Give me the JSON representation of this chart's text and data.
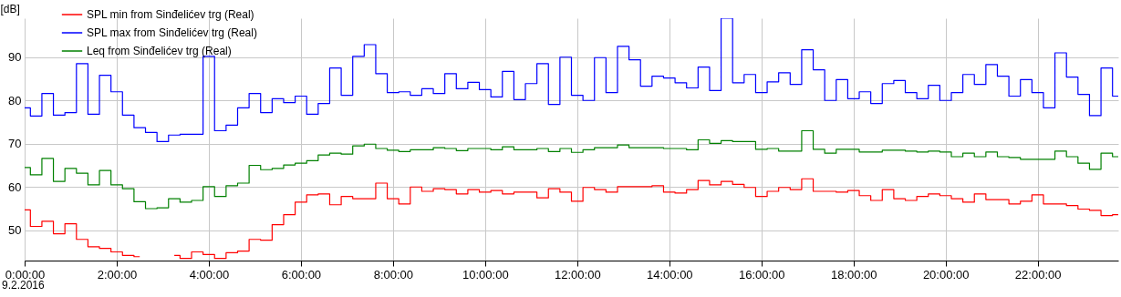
{
  "chart_data": {
    "type": "step",
    "ylabel": "[dB]",
    "annotations": [
      "9.2.2016"
    ],
    "x": [
      0,
      0.25,
      0.5,
      0.75,
      1,
      1.25,
      1.5,
      1.75,
      2,
      2.25,
      2.5,
      2.75,
      3,
      3.25,
      3.5,
      3.75,
      4,
      4.25,
      4.5,
      4.75,
      5,
      5.25,
      5.5,
      5.75,
      6,
      6.25,
      6.5,
      6.75,
      7,
      7.25,
      7.5,
      7.75,
      8,
      8.25,
      8.5,
      8.75,
      9,
      9.25,
      9.5,
      9.75,
      10,
      10.25,
      10.5,
      10.75,
      11,
      11.25,
      11.5,
      11.75,
      12,
      12.25,
      12.5,
      12.75,
      13,
      13.25,
      13.5,
      13.75,
      14,
      14.25,
      14.5,
      14.75,
      15,
      15.25,
      15.5,
      15.75,
      16,
      16.25,
      16.5,
      16.75,
      17,
      17.25,
      17.5,
      17.75,
      18,
      18.25,
      18.5,
      18.75,
      19,
      19.25,
      19.5,
      19.75,
      20,
      20.25,
      20.5,
      20.75,
      21,
      21.25,
      21.5,
      21.75,
      22,
      22.25,
      22.5,
      22.75,
      23,
      23.25,
      23.5,
      23.75
    ],
    "series": [
      {
        "name": "SPL min from Sinđelićev trg (Real)",
        "color": "#ff0000",
        "values": [
          54.7,
          50.9,
          52.1,
          49.2,
          51.5,
          47.9,
          46.2,
          45.8,
          45.0,
          44.2,
          43.9,
          null,
          null,
          44.2,
          43.5,
          45.0,
          44.4,
          43.5,
          44.8,
          45.2,
          47.9,
          47.7,
          51.3,
          53.6,
          56.5,
          58.2,
          58.4,
          55.9,
          57.8,
          57.3,
          57.3,
          60.9,
          57.3,
          56.1,
          60.0,
          59.0,
          59.6,
          59.4,
          58.4,
          59.4,
          58.8,
          59.2,
          58.4,
          58.8,
          58.8,
          57.5,
          59.6,
          58.8,
          56.7,
          59.9,
          59.4,
          58.8,
          60.1,
          60.1,
          60.1,
          60.3,
          58.8,
          58.6,
          59.4,
          61.5,
          60.5,
          61.3,
          60.6,
          59.9,
          57.8,
          59.0,
          59.9,
          59.4,
          61.9,
          59.0,
          59.0,
          58.8,
          59.2,
          58.0,
          56.9,
          59.4,
          57.3,
          56.9,
          57.8,
          58.4,
          58.0,
          57.3,
          56.5,
          58.4,
          57.1,
          57.1,
          56.1,
          56.7,
          58.2,
          56.1,
          56.1,
          55.7,
          54.9,
          54.6,
          53.4,
          53.6
        ]
      },
      {
        "name": "SPL max from Sinđelićev trg (Real)",
        "color": "#0000ff",
        "values": [
          78.3,
          76.4,
          81.6,
          76.6,
          77.2,
          88.5,
          76.8,
          85.8,
          82.0,
          76.6,
          73.7,
          72.6,
          70.5,
          72.0,
          72.2,
          72.2,
          90.2,
          73.0,
          74.3,
          78.3,
          81.6,
          77.2,
          80.4,
          79.5,
          81.0,
          76.8,
          79.3,
          87.5,
          81.2,
          90.2,
          92.9,
          86.2,
          81.8,
          82.0,
          81.2,
          82.7,
          81.6,
          86.2,
          82.7,
          84.2,
          82.5,
          80.8,
          86.7,
          80.2,
          83.9,
          88.5,
          79.1,
          90.0,
          81.2,
          80.0,
          89.9,
          81.8,
          92.5,
          89.4,
          83.3,
          85.6,
          85.2,
          84.1,
          82.9,
          87.7,
          82.3,
          99.0,
          84.1,
          86.0,
          81.8,
          84.3,
          86.4,
          83.7,
          91.7,
          87.1,
          80.0,
          84.8,
          80.4,
          82.0,
          79.3,
          83.9,
          84.6,
          81.8,
          80.4,
          83.5,
          80.0,
          81.8,
          86.0,
          83.7,
          88.3,
          85.6,
          81.0,
          84.8,
          81.8,
          78.3,
          91.0,
          85.4,
          81.4,
          76.5,
          87.5,
          81.0
        ]
      },
      {
        "name": "Leq from Sinđelićev trg (Real)",
        "color": "#008000",
        "values": [
          64.5,
          62.8,
          66.6,
          61.3,
          64.3,
          63.2,
          60.5,
          63.8,
          60.5,
          59.6,
          56.6,
          55.0,
          55.2,
          57.3,
          56.5,
          56.9,
          60.1,
          57.8,
          60.3,
          60.9,
          65.0,
          64.0,
          64.3,
          65.1,
          65.5,
          66.1,
          67.4,
          67.8,
          67.6,
          69.5,
          69.9,
          68.9,
          68.5,
          68.2,
          68.6,
          68.6,
          69.1,
          68.9,
          68.4,
          68.9,
          68.9,
          68.6,
          69.3,
          68.6,
          68.6,
          68.9,
          68.2,
          68.9,
          68.0,
          68.6,
          69.1,
          69.1,
          69.7,
          69.1,
          69.1,
          69.1,
          68.9,
          68.9,
          68.6,
          70.9,
          70.1,
          70.7,
          70.5,
          70.5,
          68.7,
          68.9,
          68.3,
          68.3,
          73.0,
          68.7,
          67.8,
          68.7,
          68.7,
          68.1,
          68.1,
          68.5,
          68.5,
          68.3,
          68.1,
          68.3,
          68.1,
          67.0,
          67.8,
          67.0,
          68.1,
          67.0,
          66.8,
          66.4,
          66.4,
          66.4,
          68.3,
          67.0,
          65.5,
          64.1,
          67.8,
          67.0
        ]
      }
    ],
    "xlim": [
      0,
      23.75
    ],
    "xticks": [
      {
        "value": 0,
        "label": "0:00:00"
      },
      {
        "value": 2,
        "label": "2:00:00"
      },
      {
        "value": 4,
        "label": "4:00:00"
      },
      {
        "value": 6,
        "label": "6:00:00"
      },
      {
        "value": 8,
        "label": "8:00:00"
      },
      {
        "value": 10,
        "label": "10:00:00"
      },
      {
        "value": 12,
        "label": "12:00:00"
      },
      {
        "value": 14,
        "label": "14:00:00"
      },
      {
        "value": 16,
        "label": "16:00:00"
      },
      {
        "value": 18,
        "label": "18:00:00"
      },
      {
        "value": 20,
        "label": "20:00:00"
      },
      {
        "value": 22,
        "label": "22:00:00"
      }
    ],
    "ylim": [
      43,
      99
    ],
    "yticks": [
      50,
      60,
      70,
      80,
      90
    ],
    "grid": true,
    "legend": "top left",
    "line_style": "solid"
  }
}
